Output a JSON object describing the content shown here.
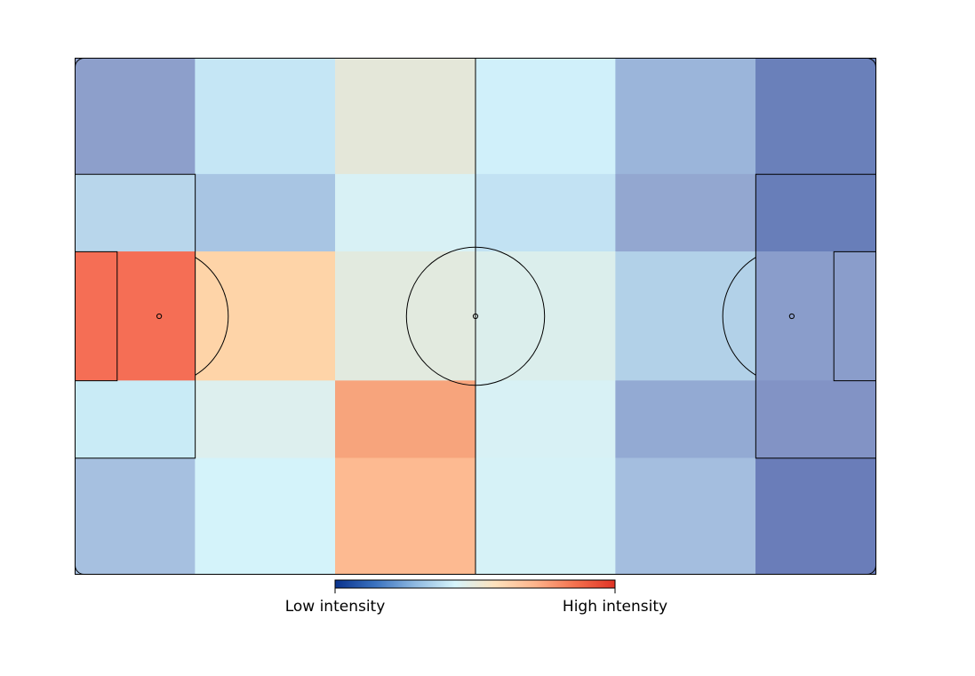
{
  "chart_data": {
    "type": "heatmap",
    "title": "",
    "xlabel": "",
    "ylabel": "",
    "grid": false,
    "columns": 6,
    "rows": 5,
    "cell_colors": [
      [
        "#8d9fcb",
        "#c5e6f5",
        "#e4e7d9",
        "#d0f0fa",
        "#9bb5da",
        "#6a80ba"
      ],
      [
        "#b8d6eb",
        "#a8c5e3",
        "#d8f1f5",
        "#c2e2f3",
        "#93a7d0",
        "#687eb9"
      ],
      [
        "#f56e55",
        "#fed4a8",
        "#e2eadf",
        "#dbeeec",
        "#b2d1e8",
        "#8a9dcb"
      ],
      [
        "#c9ebf6",
        "#ddefee",
        "#f7a47c",
        "#d8f1f5",
        "#93aad3",
        "#8293c5"
      ],
      [
        "#a6c0e0",
        "#d4f3fa",
        "#fdba91",
        "#d6f2f7",
        "#a4bedf",
        "#6a7db9"
      ]
    ],
    "colorbar": {
      "colors": [
        "#09328d",
        "#3a72c0",
        "#8fb9e1",
        "#d6f4fb",
        "#fde2bd",
        "#fdb48c",
        "#f3714e",
        "#e03325"
      ],
      "low_label": "Low intensity",
      "high_label": "High intensity"
    },
    "pitch": {
      "line_color": "#000000",
      "background": "#ffffff"
    }
  }
}
